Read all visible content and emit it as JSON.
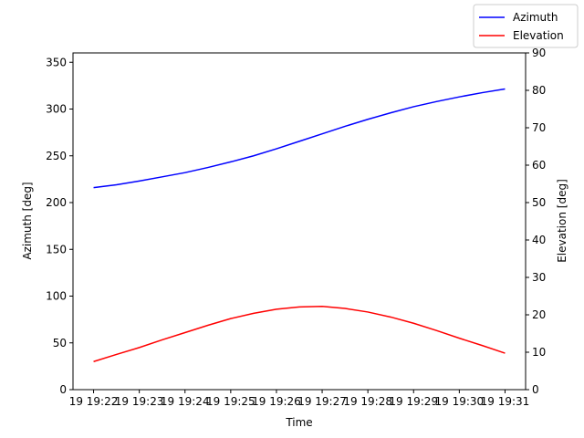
{
  "chart_data": {
    "type": "line",
    "xlabel": "Time",
    "ylabel": "Azimuth [deg]",
    "y2label": "Elevation [deg]",
    "x": [
      22,
      22.5,
      23,
      23.5,
      24,
      24.5,
      25,
      25.5,
      26,
      26.5,
      27,
      27.5,
      28,
      28.5,
      29,
      29.5,
      30,
      30.5,
      31
    ],
    "series": [
      {
        "name": "Azimuth",
        "color": "#0000ff",
        "values": [
          216,
          219,
          223,
          227.5,
          232,
          237.5,
          243.5,
          250,
          257.5,
          265.5,
          273.5,
          281.5,
          289,
          296,
          302.5,
          308,
          313,
          317.5,
          321.5
        ]
      },
      {
        "name": "Elevation",
        "color": "#ff0000",
        "axis": "y2",
        "values": [
          7.5,
          9.4,
          11.25,
          13.3,
          15.25,
          17.2,
          19,
          20.4,
          21.5,
          22.1,
          22.25,
          21.7,
          20.75,
          19.4,
          17.75,
          15.8,
          13.75,
          11.8,
          9.75
        ]
      }
    ],
    "xlim": [
      21.55,
      31.45
    ],
    "xticks": [
      {
        "value": 22,
        "label": "19 19:22"
      },
      {
        "value": 23,
        "label": "19 19:23"
      },
      {
        "value": 24,
        "label": "19 19:24"
      },
      {
        "value": 25,
        "label": "19 19:25"
      },
      {
        "value": 26,
        "label": "19 19:26"
      },
      {
        "value": 27,
        "label": "19 19:27"
      },
      {
        "value": 28,
        "label": "19 19:28"
      },
      {
        "value": 29,
        "label": "19 19:29"
      },
      {
        "value": 30,
        "label": "19 19:30"
      },
      {
        "value": 31,
        "label": "19 19:31"
      }
    ],
    "ylim": [
      0,
      360
    ],
    "yticks": [
      0,
      50,
      100,
      150,
      200,
      250,
      300,
      350
    ],
    "y2lim": [
      0,
      90
    ],
    "y2ticks": [
      0,
      10,
      20,
      30,
      40,
      50,
      60,
      70,
      80,
      90
    ],
    "legend": "upper right"
  }
}
